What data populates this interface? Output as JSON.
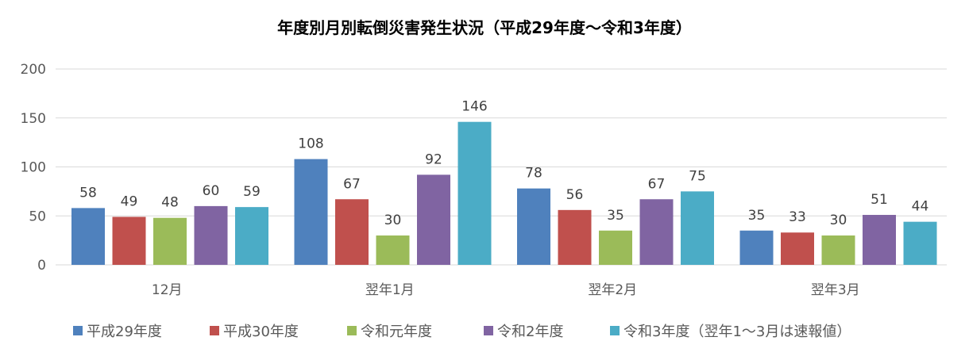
{
  "chart_data": {
    "type": "bar",
    "title": "年度別月別転倒災害発生状況（平成29年度～令和3年度）",
    "xlabel": "",
    "ylabel": "",
    "ylim": [
      0,
      200
    ],
    "yticks": [
      0,
      50,
      100,
      150,
      200
    ],
    "grid": true,
    "legend_position": "bottom",
    "categories": [
      "12月",
      "翌年1月",
      "翌年2月",
      "翌年3月"
    ],
    "series": [
      {
        "name": "平成29年度",
        "color": "#4F81BD",
        "values": [
          58,
          108,
          78,
          35
        ]
      },
      {
        "name": "平成30年度",
        "color": "#C0504D",
        "values": [
          49,
          67,
          56,
          33
        ]
      },
      {
        "name": "令和元年度",
        "color": "#9BBB59",
        "values": [
          48,
          30,
          35,
          30
        ]
      },
      {
        "name": "令和2年度",
        "color": "#8064A2",
        "values": [
          60,
          92,
          67,
          51
        ]
      },
      {
        "name": "令和3年度（翌年1～3月は速報値）",
        "color": "#4BACC6",
        "values": [
          59,
          146,
          75,
          44
        ]
      }
    ]
  }
}
